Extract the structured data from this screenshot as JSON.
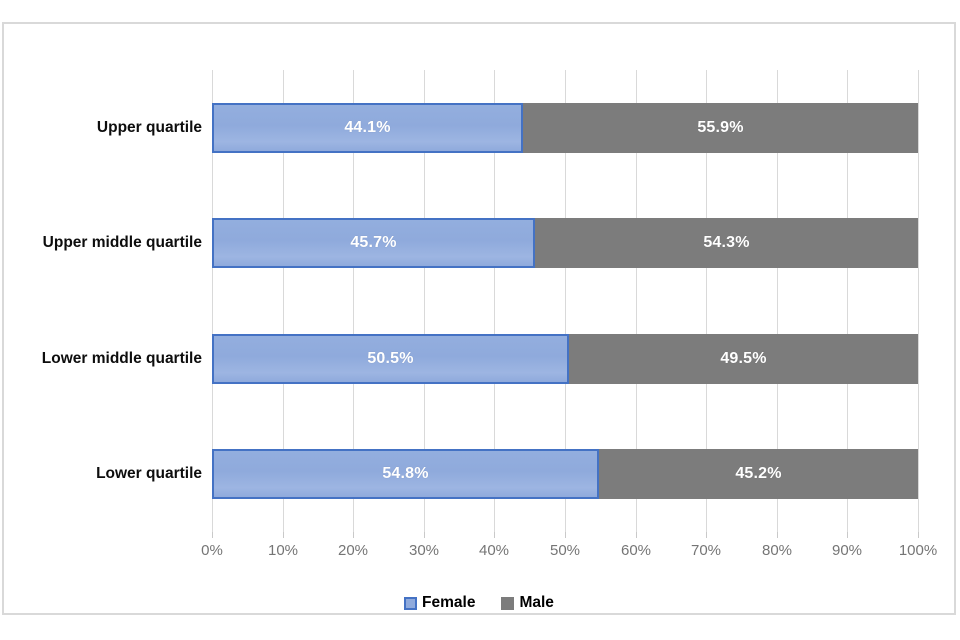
{
  "chart_data": {
    "type": "bar",
    "orientation": "horizontal",
    "stacked": true,
    "stacked_to": 100,
    "categories": [
      "Upper quartile",
      "Upper middle quartile",
      "Lower middle quartile",
      "Lower quartile"
    ],
    "series": [
      {
        "name": "Female",
        "values": [
          44.1,
          45.7,
          50.5,
          54.8
        ],
        "labels": [
          "44.1%",
          "45.7%",
          "50.5%",
          "54.8%"
        ],
        "fill": "#8FAADC",
        "border": "#4472C4"
      },
      {
        "name": "Male",
        "values": [
          55.9,
          54.3,
          49.5,
          45.2
        ],
        "labels": [
          "55.9%",
          "54.3%",
          "49.5%",
          "45.2%"
        ],
        "fill": "#7C7C7C",
        "border": ""
      }
    ],
    "x_axis": {
      "min": 0,
      "max": 100,
      "step": 10,
      "tick_labels": [
        "0%",
        "10%",
        "20%",
        "30%",
        "40%",
        "50%",
        "60%",
        "70%",
        "80%",
        "90%",
        "100%"
      ]
    },
    "grid": "vertical",
    "legend_position": "bottom",
    "legend": [
      {
        "label": "Female",
        "color": "#8FAADC",
        "border": "#4472C4"
      },
      {
        "label": "Male",
        "color": "#7C7C7C",
        "border": ""
      }
    ],
    "colors": {
      "gridline": "#D9D9D9",
      "frame_border": "#D9D9D9",
      "tick_text": "#757575",
      "category_text": "#0D0D0D",
      "data_label_text": "#FFFFFF"
    }
  }
}
